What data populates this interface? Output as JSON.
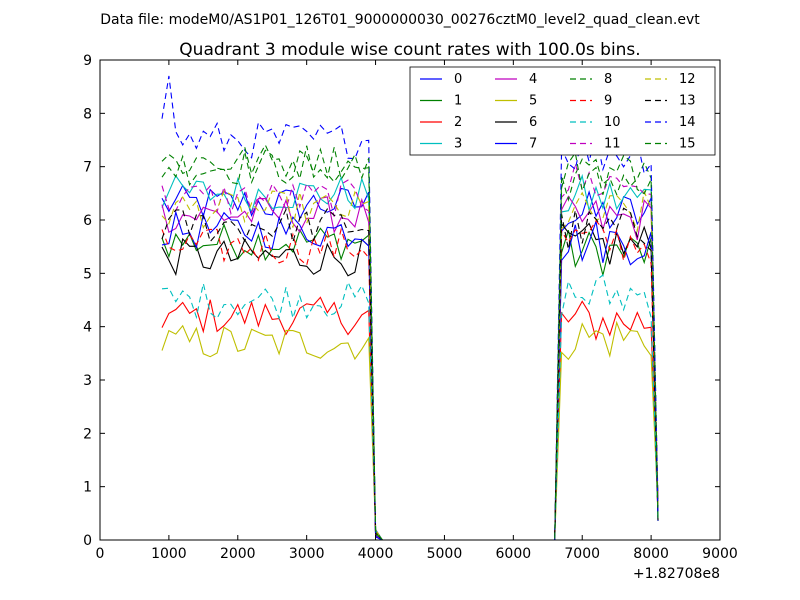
{
  "suptitle": "Data file: modeM0/AS1P01_126T01_9000000030_00276cztM0_level2_quad_clean.evt",
  "chart_data": {
    "type": "line",
    "title": "Quadrant 3 module wise count rates with 100.0s bins.",
    "xlabel": "",
    "ylabel": "",
    "x_offset_label": "+1.82708e8",
    "xlim": [
      0,
      9000
    ],
    "ylim": [
      0,
      9
    ],
    "xticks": [
      0,
      1000,
      2000,
      3000,
      4000,
      5000,
      6000,
      7000,
      8000,
      9000
    ],
    "yticks": [
      0,
      1,
      2,
      3,
      4,
      5,
      6,
      7,
      8,
      9
    ],
    "grid": false,
    "legend_position": "top-right",
    "legend_columns": 4,
    "x_segments": [
      {
        "start": 900,
        "end": 3900,
        "step": 100
      },
      {
        "start": 4000,
        "end": 6600,
        "step": 100
      },
      {
        "start": 6700,
        "end": 8100,
        "step": 100
      }
    ],
    "series": [
      {
        "name": "0",
        "color": "#0000ff",
        "dash": "solid",
        "level_active": 6.3,
        "level_2": 6.1
      },
      {
        "name": "1",
        "color": "#008000",
        "dash": "solid",
        "level_active": 5.6,
        "level_2": 5.4
      },
      {
        "name": "2",
        "color": "#ff0000",
        "dash": "solid",
        "level_active": 4.2,
        "level_2": 4.1
      },
      {
        "name": "3",
        "color": "#00bfbf",
        "dash": "solid",
        "level_active": 6.5,
        "level_2": 6.4
      },
      {
        "name": "4",
        "color": "#bf00bf",
        "dash": "solid",
        "level_active": 6.1,
        "level_2": 6.0
      },
      {
        "name": "5",
        "color": "#bfbf00",
        "dash": "solid",
        "level_active": 3.7,
        "level_2": 3.8
      },
      {
        "name": "6",
        "color": "#000000",
        "dash": "solid",
        "level_active": 5.3,
        "level_2": 5.5
      },
      {
        "name": "7",
        "color": "#0000ff",
        "dash": "solid",
        "level_active": 5.8,
        "level_2": 5.6
      },
      {
        "name": "8",
        "color": "#008000",
        "dash": "dashed",
        "level_active": 7.0,
        "level_2": 6.8
      },
      {
        "name": "9",
        "color": "#ff0000",
        "dash": "dashed",
        "level_active": 5.5,
        "level_2": 5.6
      },
      {
        "name": "10",
        "color": "#00bfbf",
        "dash": "dashed",
        "level_active": 4.5,
        "level_2": 4.6
      },
      {
        "name": "11",
        "color": "#bf00bf",
        "dash": "dashed",
        "level_active": 6.4,
        "level_2": 6.7
      },
      {
        "name": "12",
        "color": "#bfbf00",
        "dash": "dashed",
        "level_active": 6.2,
        "level_2": 6.1
      },
      {
        "name": "13",
        "color": "#000000",
        "dash": "dashed",
        "level_active": 5.9,
        "level_2": 5.8
      },
      {
        "name": "14",
        "color": "#0000ff",
        "dash": "dashed",
        "level_active": 7.5,
        "level_2": 7.3
      },
      {
        "name": "15",
        "color": "#008000",
        "dash": "dashed",
        "level_active": 7.1,
        "level_2": 6.9
      }
    ]
  }
}
